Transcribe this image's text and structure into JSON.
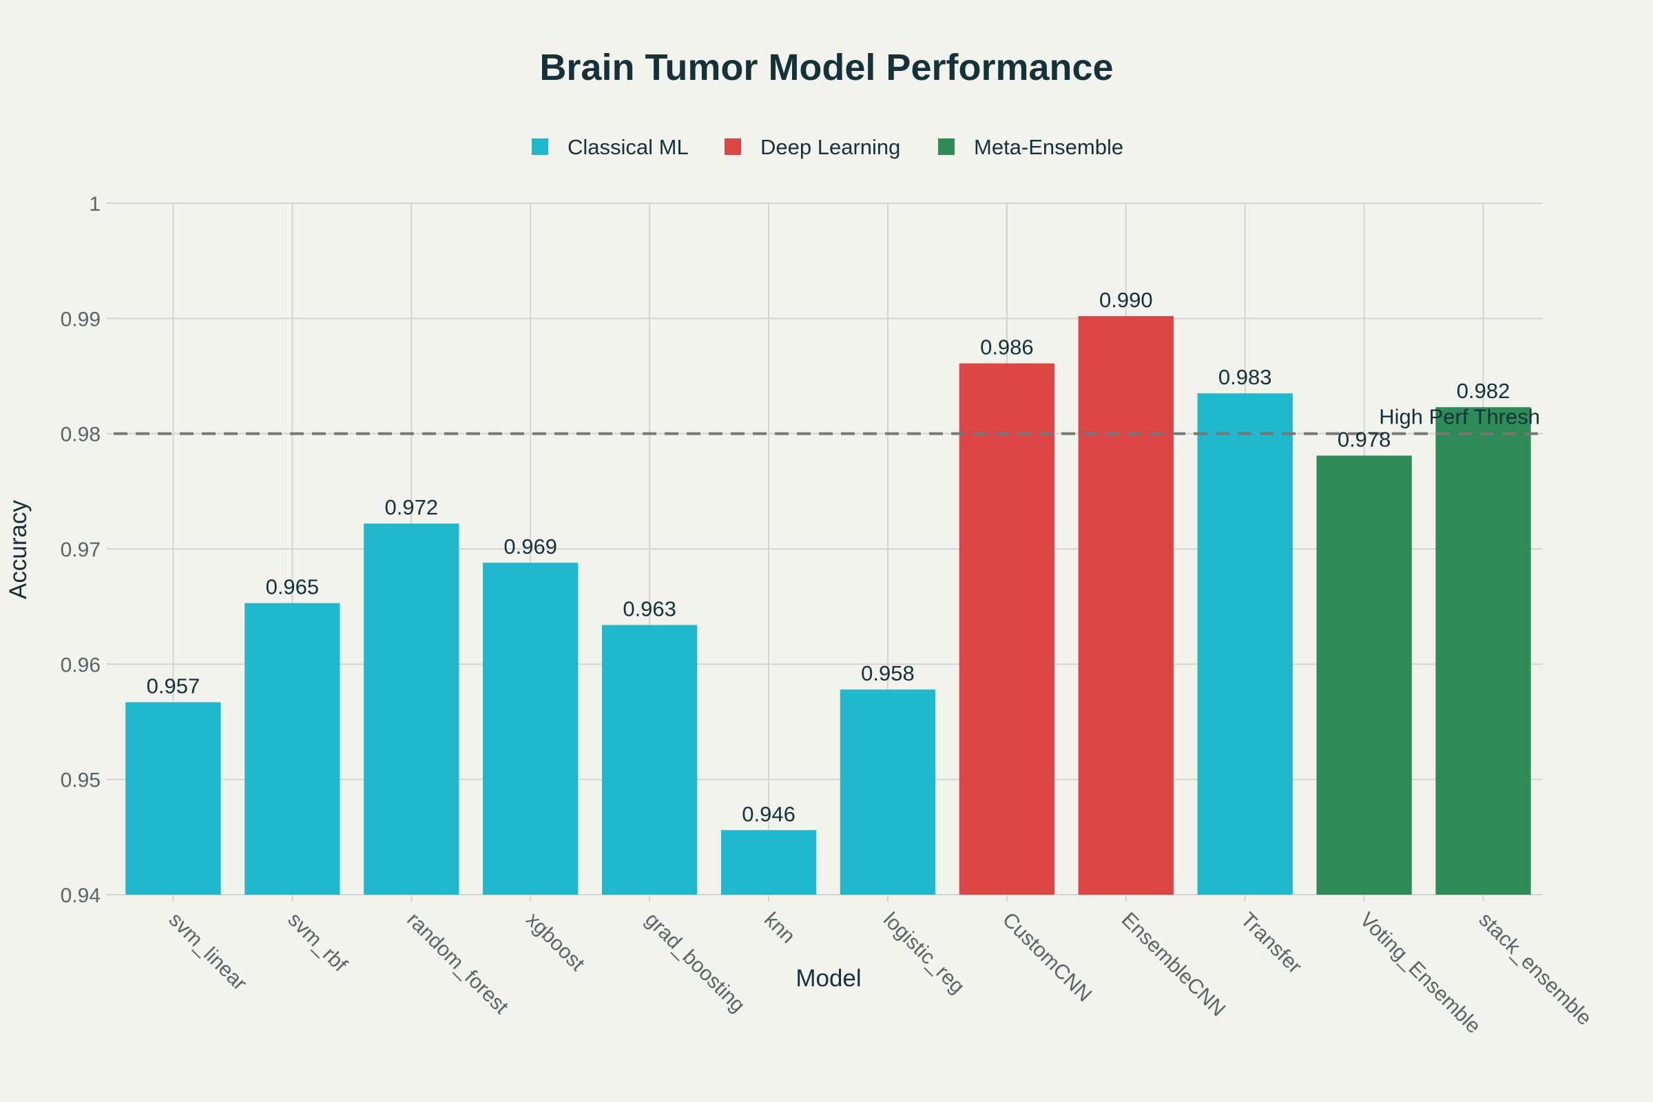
{
  "chart_data": {
    "type": "bar",
    "title": "Brain Tumor Model Performance",
    "xlabel": "Model",
    "ylabel": "Accuracy",
    "ylim": [
      0.94,
      1.0
    ],
    "yticks": [
      0.94,
      0.95,
      0.96,
      0.97,
      0.98,
      0.99,
      1
    ],
    "ytick_labels": [
      "0.94",
      "0.95",
      "0.96",
      "0.97",
      "0.98",
      "0.99",
      "1"
    ],
    "grid": true,
    "legend_position": "top-center",
    "legend": [
      {
        "name": "Classical ML",
        "color": "#21b8cd"
      },
      {
        "name": "Deep Learning",
        "color": "#db4545"
      },
      {
        "name": "Meta-Ensemble",
        "color": "#2e8b57"
      }
    ],
    "categories": [
      "svm_linear",
      "svm_rbf",
      "random_forest",
      "xgboost",
      "grad_boosting",
      "knn",
      "logistic_reg",
      "CustomCNN",
      "EnsembleCNN",
      "Transfer",
      "Voting_Ensemble",
      "stack_ensemble"
    ],
    "values": [
      0.9567,
      0.9653,
      0.9722,
      0.9688,
      0.9634,
      0.9456,
      0.9578,
      0.9861,
      0.9902,
      0.9835,
      0.9781,
      0.9823
    ],
    "value_labels": [
      "0.957",
      "0.965",
      "0.972",
      "0.969",
      "0.963",
      "0.946",
      "0.958",
      "0.986",
      "0.990",
      "0.983",
      "0.978",
      "0.982"
    ],
    "groups": [
      "Classical ML",
      "Classical ML",
      "Classical ML",
      "Classical ML",
      "Classical ML",
      "Classical ML",
      "Classical ML",
      "Deep Learning",
      "Deep Learning",
      "Classical ML",
      "Meta-Ensemble",
      "Meta-Ensemble"
    ],
    "reference_line": {
      "value": 0.98,
      "label": "High Perf Thresh",
      "style": "dashed",
      "color": "#777777"
    }
  }
}
